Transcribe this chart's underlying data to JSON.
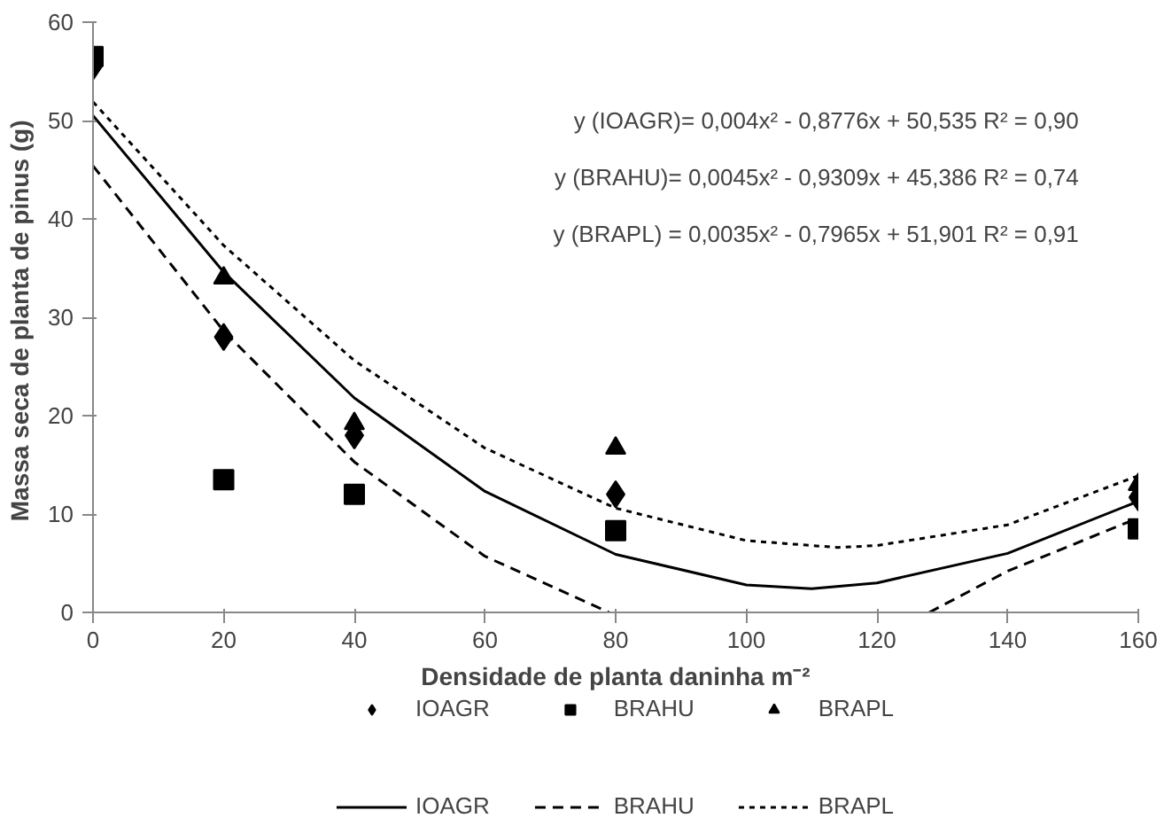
{
  "chart_data": {
    "type": "scatter",
    "xlabel": "Densidade de planta daninha m⁻²",
    "ylabel": "Massa seca de planta de pinus  (g)",
    "xlim": [
      0,
      160
    ],
    "ylim": [
      0,
      60
    ],
    "xticks": [
      0,
      20,
      40,
      60,
      80,
      100,
      120,
      140,
      160
    ],
    "yticks": [
      0,
      10,
      20,
      30,
      40,
      50,
      60
    ],
    "grid": false,
    "legend": "bottom",
    "x": [
      0,
      20,
      40,
      80,
      160
    ],
    "series": [
      {
        "name": "IOAGR",
        "color": "#000000",
        "marker": "diamond",
        "values": [
          55.5,
          28,
          18,
          12,
          11.7
        ]
      },
      {
        "name": "BRAHU",
        "color": "#000000",
        "marker": "square",
        "values": [
          56.5,
          13.5,
          12,
          8.3,
          8.5
        ]
      },
      {
        "name": "BRAPL",
        "color": "#000000",
        "marker": "triangle",
        "values": [
          null,
          34,
          19.2,
          16.7,
          13
        ]
      },
      {
        "name": "IOAGR",
        "type": "line",
        "color": "#000000",
        "line_style": "solid",
        "x": [
          0,
          20,
          40,
          60,
          80,
          100,
          110,
          120,
          140,
          160
        ],
        "values": [
          50.5,
          34.6,
          21.8,
          12.3,
          5.9,
          2.8,
          2.4,
          3.0,
          6.0,
          11.3
        ]
      },
      {
        "name": "BRAHU",
        "type": "line",
        "color": "#000000",
        "line_style": "dashed",
        "x": [
          0,
          20,
          40,
          60,
          79,
          100,
          128,
          140,
          160
        ],
        "values": [
          45.4,
          28.6,
          15.3,
          5.7,
          0,
          null,
          0,
          4.2,
          9.6
        ]
      },
      {
        "name": "BRAPL",
        "type": "line",
        "color": "#000000",
        "line_style": "dotted",
        "x": [
          0,
          20,
          40,
          60,
          80,
          100,
          114,
          120,
          140,
          160
        ],
        "values": [
          51.9,
          37.3,
          25.6,
          16.7,
          10.6,
          7.3,
          6.6,
          6.8,
          8.9,
          13.9
        ]
      }
    ],
    "annotations": [
      "y (IOAGR)= 0,004x² - 0,8776x + 50,535  R² = 0,90",
      "y (BRAHU)= 0,0045x² - 0,9309x + 45,386  R² = 0,74",
      "y (BRAPL) = 0,0035x² - 0,7965x + 51,901  R² = 0,91"
    ]
  }
}
